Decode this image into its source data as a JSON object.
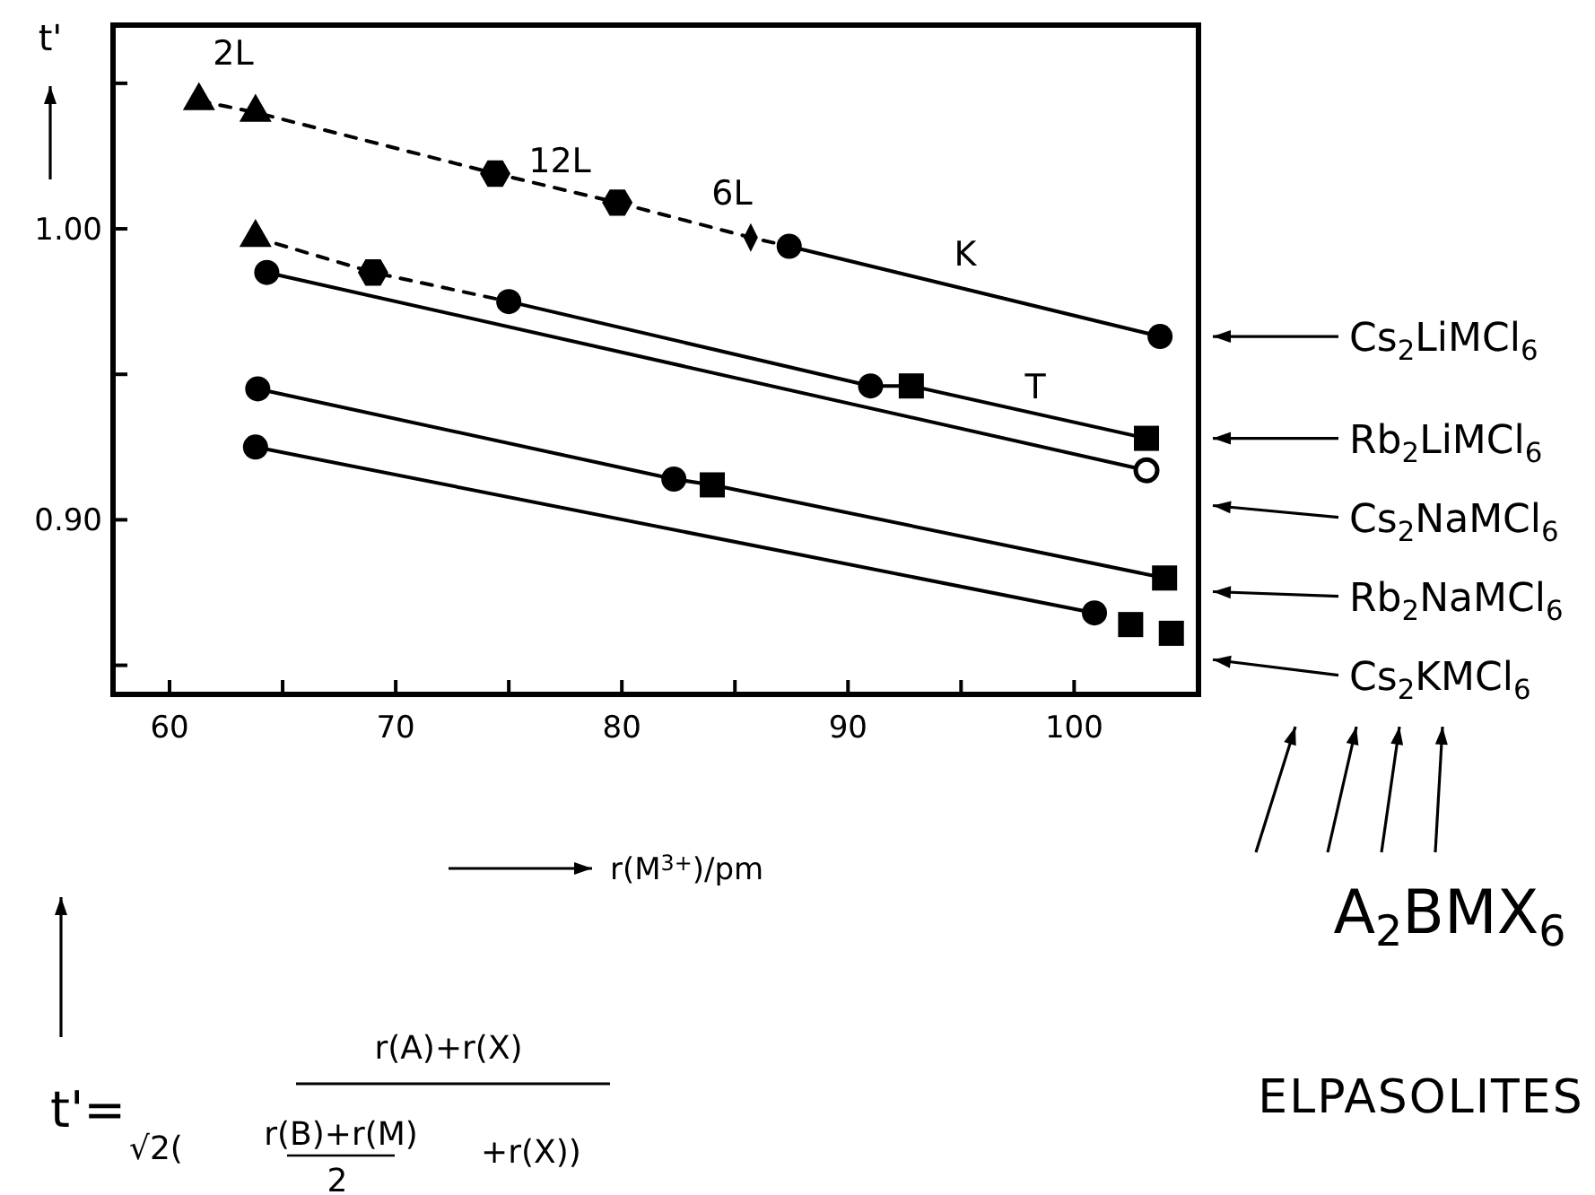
{
  "chart_data": {
    "type": "line",
    "xlabel": "r(M$^{3+}$)/pm",
    "ylabel": "t'",
    "xlim": [
      57.5,
      105.5
    ],
    "ylim": [
      0.84,
      1.07
    ],
    "xticks": [
      60,
      {
        "value": 65,
        "label": null
      },
      70,
      {
        "value": 75,
        "label": null
      },
      80,
      {
        "value": 85,
        "label": null
      },
      90,
      {
        "value": 95,
        "label": null
      },
      100
    ],
    "yticks": [
      {
        "value": 0.85,
        "label": null
      },
      {
        "value": 0.9,
        "label": "0.90"
      },
      {
        "value": 0.95,
        "label": null
      },
      {
        "value": 1.0,
        "label": "1.00"
      },
      {
        "value": 1.05,
        "label": null
      }
    ],
    "grid": false,
    "legend": "right",
    "series": [
      {
        "color": "#000000",
        "line_style": "dashed",
        "x": [
          61.3,
          63.8,
          74.4,
          79.8,
          85.7,
          87.4
        ],
        "values": [
          1.044,
          1.04,
          1.019,
          1.009,
          0.997,
          0.994
        ]
      },
      {
        "name": "Cs$_{2}$LiMCl$_{6}$",
        "color": "#000000",
        "line_style": "solid",
        "x": [
          87.4,
          103.8
        ],
        "values": [
          0.994,
          0.963
        ]
      },
      {
        "color": "#000000",
        "line_style": "dashed",
        "x": [
          63.8,
          69.0,
          75.0
        ],
        "values": [
          0.997,
          0.985,
          0.975
        ]
      },
      {
        "name": "Rb$_{2}$LiMCl$_{6}$",
        "color": "#000000",
        "line_style": "solid",
        "x": [
          75.0,
          91.0,
          92.8,
          103.2
        ],
        "values": [
          0.975,
          0.946,
          0.946,
          0.928
        ]
      },
      {
        "name": "Cs$_{2}$NaMCl$_{6}$",
        "color": "#000000",
        "line_style": "solid",
        "x": [
          64.3,
          103.2
        ],
        "values": [
          0.985,
          0.917
        ]
      },
      {
        "name": "Rb$_{2}$NaMCl$_{6}$",
        "color": "#000000",
        "line_style": "solid",
        "x": [
          63.9,
          82.3,
          84.0,
          104.0
        ],
        "values": [
          0.945,
          0.914,
          0.912,
          0.88
        ]
      },
      {
        "name": "Cs$_{2}$KMCl$_{6}$",
        "color": "#000000",
        "line_style": "solid",
        "x": [
          63.8,
          100.9
        ],
        "values": [
          0.925,
          0.868
        ]
      },
      {
        "type": "scatter",
        "color": "#000000",
        "marker": "triangle",
        "x": [
          61.3,
          63.8,
          63.8
        ],
        "values": [
          1.044,
          1.04,
          0.997
        ]
      },
      {
        "type": "scatter",
        "color": "#000000",
        "x": [
          74.4,
          79.8,
          69.0
        ],
        "values": [
          1.019,
          1.009,
          0.985
        ]
      },
      {
        "type": "scatter",
        "color": "#000000",
        "marker": "diamond",
        "x": [
          85.7
        ],
        "values": [
          0.997
        ]
      },
      {
        "type": "scatter",
        "color": "#000000",
        "marker": "circle",
        "x": [
          87.4,
          103.8,
          75.0,
          91.0,
          64.3,
          63.9,
          82.3,
          63.8,
          100.9
        ],
        "values": [
          0.994,
          0.963,
          0.975,
          0.946,
          0.985,
          0.945,
          0.914,
          0.925,
          0.868
        ]
      },
      {
        "type": "scatter",
        "color": "#000000",
        "marker": "square",
        "x": [
          92.8,
          103.2,
          84.0,
          104.0,
          102.5,
          104.3
        ],
        "values": [
          0.946,
          0.928,
          0.912,
          0.88,
          0.864,
          0.861
        ]
      },
      {
        "type": "scatter",
        "color": "#000000",
        "marker": "open-circle",
        "x": [
          103.2
        ],
        "values": [
          0.917
        ]
      }
    ],
    "annotations": [
      "2L",
      "12L",
      "6L",
      "K",
      "T",
      "A$_{2}$BMX$_{6}$",
      "ELPASOLITES",
      "t'=",
      "r(A)+r(X)",
      "√2(",
      "r(B)+r(M)",
      "2",
      "+r(X))"
    ]
  }
}
